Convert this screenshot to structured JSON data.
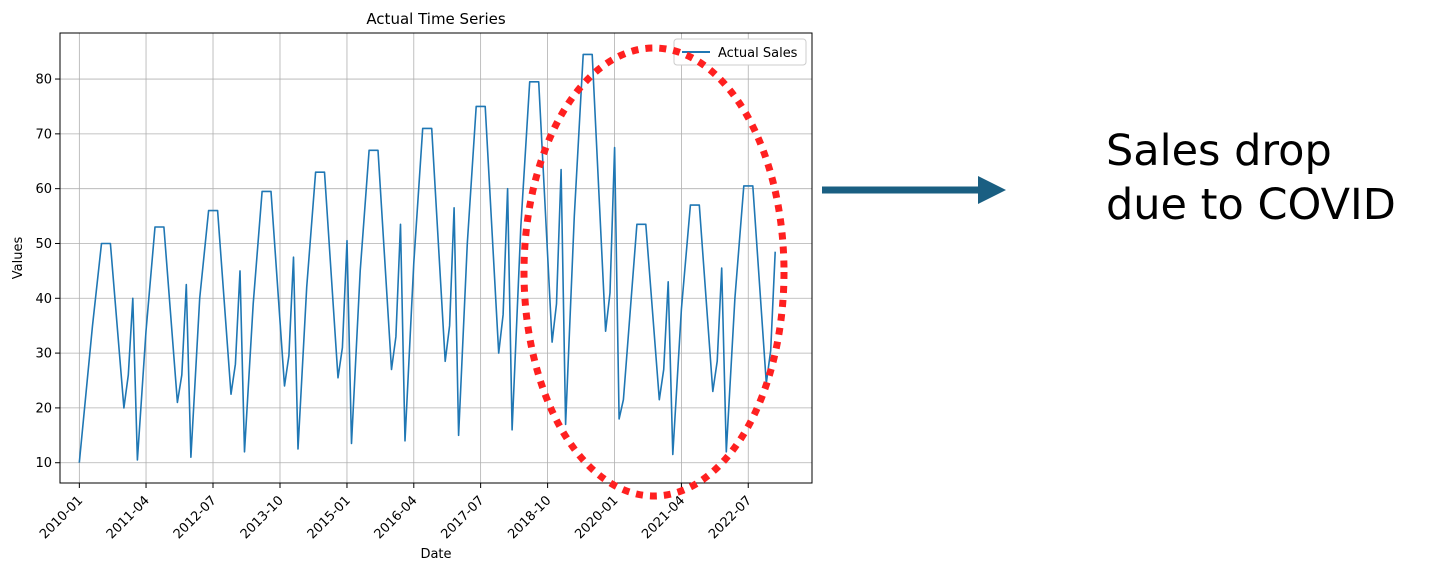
{
  "chart_data": {
    "type": "line",
    "title": "Actual Time Series",
    "xlabel": "Date",
    "ylabel": "Values",
    "ylim": [
      6.3,
      88.4
    ],
    "yticks": [
      10,
      20,
      30,
      40,
      50,
      60,
      70,
      80
    ],
    "xlim": [
      "2009-08-22",
      "2023-09-09"
    ],
    "xticks": [
      "2010-01",
      "2011-04",
      "2012-07",
      "2013-10",
      "2015-01",
      "2016-04",
      "2017-07",
      "2018-10",
      "2020-01",
      "2021-04",
      "2022-07"
    ],
    "grid": true,
    "legend": {
      "position": "top-right",
      "entries": [
        "Actual Sales"
      ]
    },
    "series": [
      {
        "name": "Actual Sales",
        "color": "#1f77b4",
        "points": [
          [
            "2010-01",
            10
          ],
          [
            "2010-04",
            35
          ],
          [
            "2010-06",
            50
          ],
          [
            "2010-07",
            50
          ],
          [
            "2010-08",
            50
          ],
          [
            "2010-11",
            20
          ],
          [
            "2010-12",
            26
          ],
          [
            "2011-01",
            40
          ],
          [
            "2011-02",
            10.5
          ],
          [
            "2011-04",
            34
          ],
          [
            "2011-06",
            53
          ],
          [
            "2011-07",
            53
          ],
          [
            "2011-08",
            53
          ],
          [
            "2011-11",
            21
          ],
          [
            "2011-12",
            26
          ],
          [
            "2012-01",
            42.5
          ],
          [
            "2012-02",
            11
          ],
          [
            "2012-04",
            40
          ],
          [
            "2012-06",
            56
          ],
          [
            "2012-07",
            56
          ],
          [
            "2012-08",
            56
          ],
          [
            "2012-11",
            22.5
          ],
          [
            "2012-12",
            28
          ],
          [
            "2013-01",
            45
          ],
          [
            "2013-02",
            12
          ],
          [
            "2013-04",
            39
          ],
          [
            "2013-06",
            59.5
          ],
          [
            "2013-07",
            59.5
          ],
          [
            "2013-08",
            59.5
          ],
          [
            "2013-11",
            24
          ],
          [
            "2013-12",
            29.5
          ],
          [
            "2014-01",
            47.5
          ],
          [
            "2014-02",
            12.5
          ],
          [
            "2014-04",
            42
          ],
          [
            "2014-06",
            63
          ],
          [
            "2014-07",
            63
          ],
          [
            "2014-08",
            63
          ],
          [
            "2014-11",
            25.5
          ],
          [
            "2014-12",
            31
          ],
          [
            "2015-01",
            50.5
          ],
          [
            "2015-02",
            13.5
          ],
          [
            "2015-04",
            45
          ],
          [
            "2015-06",
            67
          ],
          [
            "2015-07",
            67
          ],
          [
            "2015-08",
            67
          ],
          [
            "2015-11",
            27
          ],
          [
            "2015-12",
            33
          ],
          [
            "2016-01",
            53.5
          ],
          [
            "2016-02",
            14
          ],
          [
            "2016-04",
            46.5
          ],
          [
            "2016-06",
            71
          ],
          [
            "2016-07",
            71
          ],
          [
            "2016-08",
            71
          ],
          [
            "2016-11",
            28.5
          ],
          [
            "2016-12",
            35
          ],
          [
            "2017-01",
            56.5
          ],
          [
            "2017-02",
            15
          ],
          [
            "2017-04",
            50
          ],
          [
            "2017-06",
            75
          ],
          [
            "2017-07",
            75
          ],
          [
            "2017-08",
            75
          ],
          [
            "2017-11",
            30
          ],
          [
            "2017-12",
            37
          ],
          [
            "2018-01",
            60
          ],
          [
            "2018-02",
            16
          ],
          [
            "2018-04",
            53
          ],
          [
            "2018-06",
            79.5
          ],
          [
            "2018-07",
            79.5
          ],
          [
            "2018-08",
            79.5
          ],
          [
            "2018-11",
            32
          ],
          [
            "2018-12",
            39
          ],
          [
            "2019-01",
            63.5
          ],
          [
            "2019-02",
            17
          ],
          [
            "2019-04",
            55
          ],
          [
            "2019-06",
            84.5
          ],
          [
            "2019-07",
            84.5
          ],
          [
            "2019-08",
            84.5
          ],
          [
            "2019-11",
            34
          ],
          [
            "2019-12",
            41
          ],
          [
            "2020-01",
            67.5
          ],
          [
            "2020-02",
            18
          ],
          [
            "2020-03",
            21.5
          ],
          [
            "2020-06",
            53.5
          ],
          [
            "2020-07",
            53.5
          ],
          [
            "2020-08",
            53.5
          ],
          [
            "2020-11",
            21.5
          ],
          [
            "2020-12",
            27
          ],
          [
            "2021-01",
            43
          ],
          [
            "2021-02",
            11.5
          ],
          [
            "2021-04",
            38
          ],
          [
            "2021-06",
            57
          ],
          [
            "2021-07",
            57
          ],
          [
            "2021-08",
            57
          ],
          [
            "2021-11",
            23
          ],
          [
            "2021-12",
            28.5
          ],
          [
            "2022-01",
            45.5
          ],
          [
            "2022-02",
            12
          ],
          [
            "2022-04",
            40
          ],
          [
            "2022-06",
            60.5
          ],
          [
            "2022-07",
            60.5
          ],
          [
            "2022-08",
            60.5
          ],
          [
            "2022-11",
            24.5
          ],
          [
            "2022-12",
            30.5
          ],
          [
            "2023-01",
            48.5
          ]
        ]
      }
    ]
  },
  "annotation": {
    "text": "Sales drop\ndue to COVID",
    "circle_color": "#ff2020",
    "arrow_color": "#1a5f82"
  }
}
